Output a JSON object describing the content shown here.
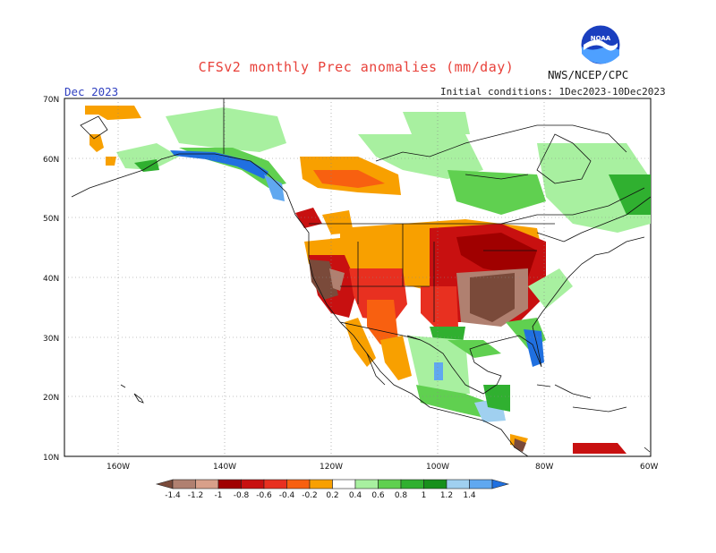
{
  "header": {
    "title": "CFSv2 monthly Prec anomalies (mm/day)",
    "org": "NWS/NCEP/CPC",
    "month": "Dec 2023",
    "init": "Initial conditions: 1Dec2023-10Dec2023",
    "logo_text": "NOAA"
  },
  "axes": {
    "lat_labels": [
      "70N",
      "60N",
      "50N",
      "40N",
      "30N",
      "20N",
      "10N"
    ],
    "lon_labels": [
      "160W",
      "140W",
      "120W",
      "100W",
      "80W",
      "60W"
    ]
  },
  "colorbar": {
    "labels": [
      "-1.4",
      "-1.2",
      "-1",
      "-0.8",
      "-0.6",
      "-0.4",
      "-0.2",
      "0.2",
      "0.4",
      "0.6",
      "0.8",
      "1",
      "1.2",
      "1.4"
    ],
    "colors": [
      "#7a4a3a",
      "#b08070",
      "#d8a08a",
      "#a00000",
      "#c81010",
      "#e83020",
      "#f86010",
      "#f8a000",
      "#ffffff",
      "#a8f0a0",
      "#60d050",
      "#30b030",
      "#18901c",
      "#a0d0f0",
      "#60a8f0",
      "#2070e0"
    ]
  },
  "anomaly_colors": {
    "neg_strong": "#7a4a3a",
    "neg_mid": "#b08070",
    "neg_light": "#d8a08a",
    "red_dark": "#a00000",
    "red": "#c81010",
    "red_orange": "#e83020",
    "orange": "#f86010",
    "light_orange": "#f8a000",
    "green_light": "#a8f0a0",
    "green": "#60d050",
    "green_mid": "#30b030",
    "green_dark": "#18901c",
    "blue_light": "#a0d0f0",
    "blue": "#60a8f0",
    "blue_dark": "#2070e0"
  }
}
